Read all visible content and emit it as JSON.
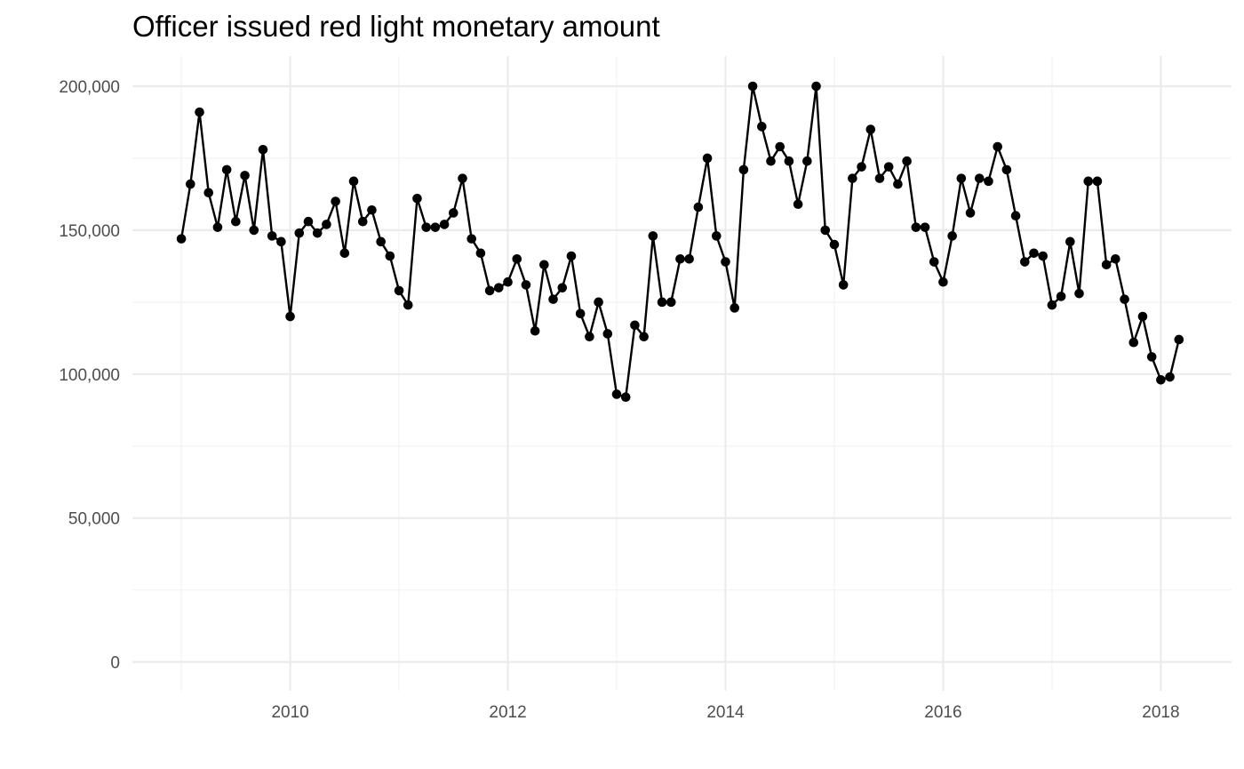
{
  "chart_data": {
    "type": "line",
    "title": "Officer issued red light monetary amount",
    "xlabel": "",
    "ylabel": "",
    "x_ticks": [
      {
        "label": "2010",
        "value": 2010
      },
      {
        "label": "2012",
        "value": 2012
      },
      {
        "label": "2014",
        "value": 2014
      },
      {
        "label": "2016",
        "value": 2016
      },
      {
        "label": "2018",
        "value": 2018
      }
    ],
    "y_ticks": [
      {
        "label": "0",
        "value": 0
      },
      {
        "label": "50,000",
        "value": 50000
      },
      {
        "label": "100,000",
        "value": 100000
      },
      {
        "label": "150,000",
        "value": 150000
      },
      {
        "label": "200,000",
        "value": 200000
      }
    ],
    "xlim": [
      2008.55,
      2018.65
    ],
    "ylim": [
      -10000,
      210500
    ],
    "grid": true,
    "legend": "none",
    "series": [
      {
        "start": "2009-01",
        "frequency": "monthly",
        "values": [
          147000,
          166000,
          191000,
          163000,
          151000,
          171000,
          153000,
          169000,
          150000,
          178000,
          148000,
          146000,
          120000,
          149000,
          153000,
          149000,
          152000,
          160000,
          142000,
          167000,
          153000,
          157000,
          146000,
          141000,
          129000,
          124000,
          161000,
          151000,
          151000,
          152000,
          156000,
          168000,
          147000,
          142000,
          129000,
          130000,
          132000,
          140000,
          131000,
          115000,
          138000,
          126000,
          130000,
          141000,
          121000,
          113000,
          125000,
          114000,
          93000,
          92000,
          117000,
          113000,
          148000,
          125000,
          125000,
          140000,
          140000,
          158000,
          175000,
          148000,
          139000,
          123000,
          171000,
          200000,
          186000,
          174000,
          179000,
          174000,
          159000,
          174000,
          200000,
          150000,
          145000,
          131000,
          168000,
          172000,
          185000,
          168000,
          172000,
          166000,
          174000,
          151000,
          151000,
          139000,
          132000,
          148000,
          168000,
          156000,
          168000,
          167000,
          179000,
          171000,
          155000,
          139000,
          142000,
          141000,
          124000,
          127000,
          146000,
          128000,
          167000,
          167000,
          138000,
          140000,
          126000,
          111000,
          120000,
          106000,
          98000,
          99000,
          112000
        ]
      }
    ]
  }
}
